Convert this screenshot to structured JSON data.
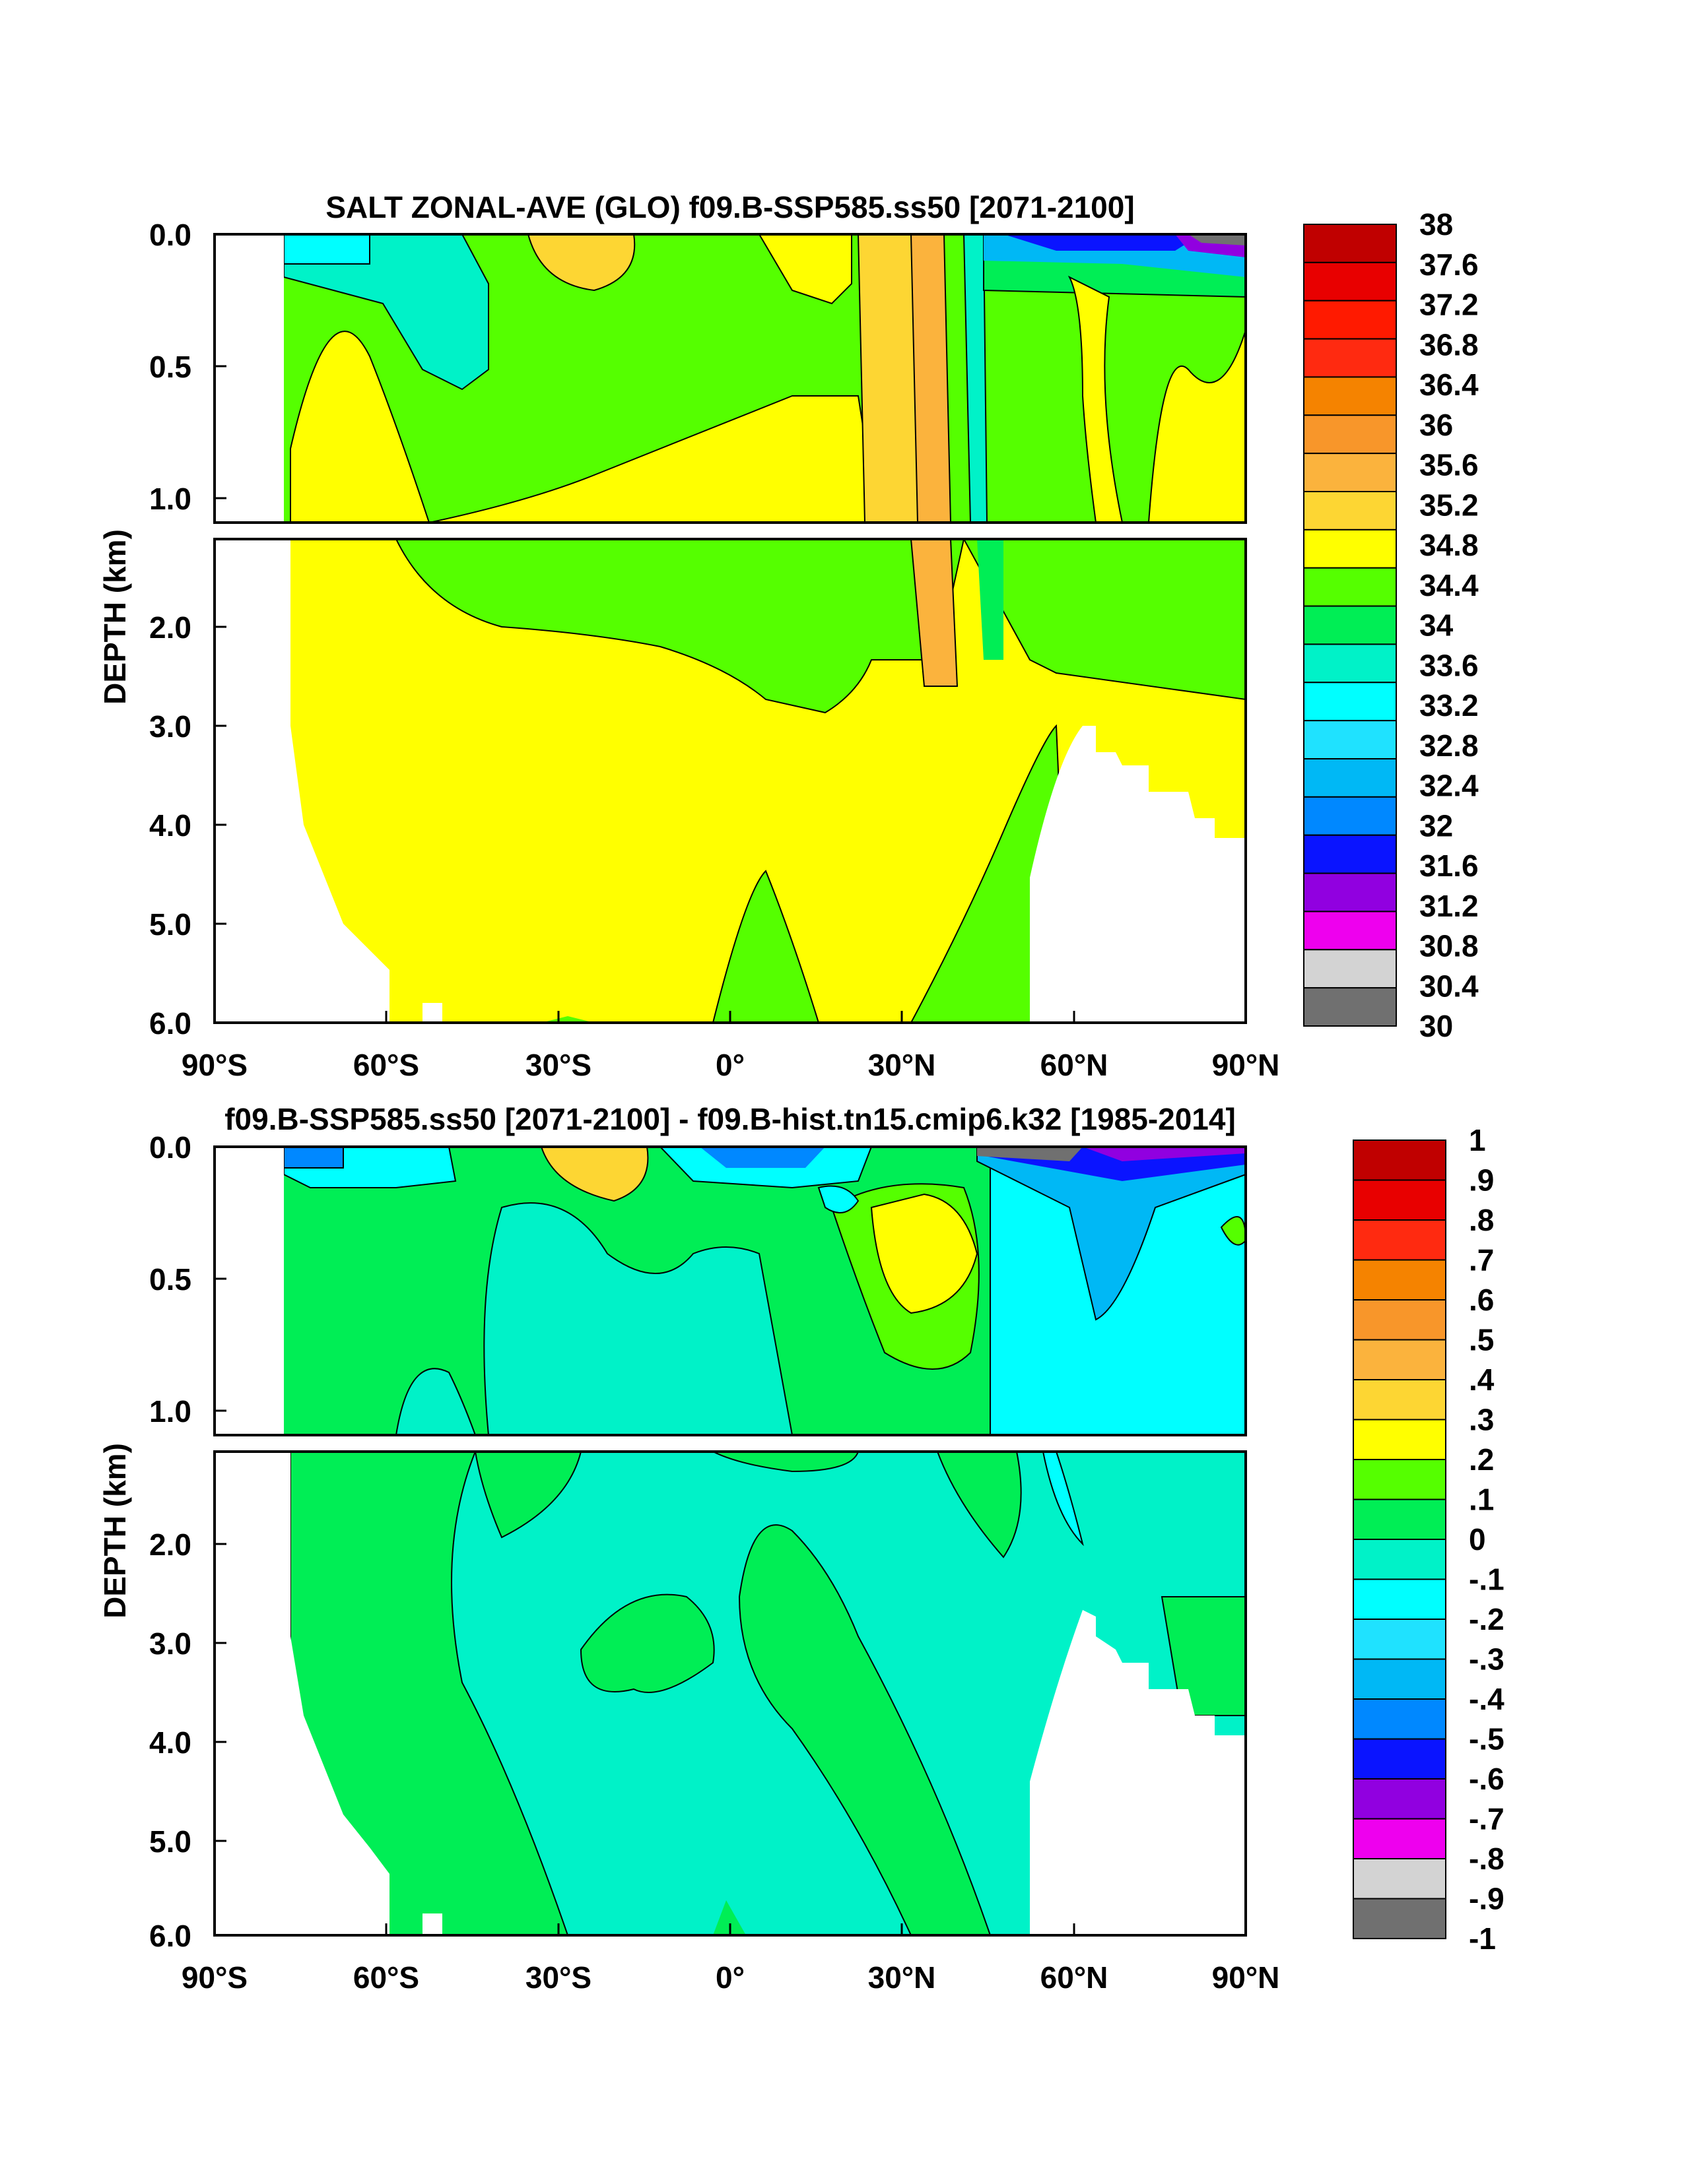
{
  "chart_data": [
    {
      "type": "filled-contour",
      "title": "SALT ZONAL-AVE (GLO) f09.B-SSP585.ss50 [2071-2100]",
      "ylabel": "DEPTH (km)",
      "x_ticks": [
        "90°S",
        "60°S",
        "30°S",
        "0°",
        "30°N",
        "60°N",
        "90°N"
      ],
      "y_ticks_upper": [
        "0.0",
        "0.5",
        "1.0"
      ],
      "y_ticks_lower": [
        "2.0",
        "3.0",
        "4.0",
        "5.0",
        "6.0"
      ],
      "xlim": [
        -90,
        90
      ],
      "ylim": [
        6.0,
        0.0
      ],
      "depth_break_km": 1.1,
      "colorbar": {
        "labels": [
          "38",
          "37.6",
          "37.2",
          "36.8",
          "36.4",
          "36",
          "35.6",
          "35.2",
          "34.8",
          "34.4",
          "34",
          "33.6",
          "33.2",
          "32.8",
          "32.4",
          "32",
          "31.6",
          "31.2",
          "30.8",
          "30.4",
          "30"
        ],
        "colors": [
          "#c00000",
          "#e80000",
          "#ff1a00",
          "#ff2a10",
          "#f58300",
          "#f8962a",
          "#fbb33d",
          "#fdd633",
          "#ffff00",
          "#55ff00",
          "#00ee55",
          "#00f2c8",
          "#00ffff",
          "#1fe2ff",
          "#00b8f5",
          "#0088ff",
          "#0a14ff",
          "#9100e0",
          "#ee00ee",
          "#d3d3d3",
          "#707070"
        ]
      }
    },
    {
      "type": "filled-contour",
      "title": "f09.B-SSP585.ss50 [2071-2100] - f09.B-hist.tn15.cmip6.k32 [1985-2014]",
      "ylabel": "DEPTH (km)",
      "x_ticks": [
        "90°S",
        "60°S",
        "30°S",
        "0°",
        "30°N",
        "60°N",
        "90°N"
      ],
      "y_ticks_upper": [
        "0.0",
        "0.5",
        "1.0"
      ],
      "y_ticks_lower": [
        "2.0",
        "3.0",
        "4.0",
        "5.0",
        "6.0"
      ],
      "xlim": [
        -90,
        90
      ],
      "ylim": [
        6.0,
        0.0
      ],
      "depth_break_km": 1.1,
      "colorbar": {
        "labels": [
          "1",
          ".9",
          ".8",
          ".7",
          ".6",
          ".5",
          ".4",
          ".3",
          ".2",
          ".1",
          "0",
          "-.1",
          "-.2",
          "-.3",
          "-.4",
          "-.5",
          "-.6",
          "-.7",
          "-.8",
          "-.9",
          "-1"
        ],
        "colors": [
          "#c00000",
          "#e80000",
          "#ff2a10",
          "#f58300",
          "#f8962a",
          "#fbb33d",
          "#fdd633",
          "#ffff00",
          "#55ff00",
          "#00ee55",
          "#00f2c8",
          "#00ffff",
          "#1fe2ff",
          "#00b8f5",
          "#0088ff",
          "#0a14ff",
          "#9100e0",
          "#ee00ee",
          "#d3d3d3",
          "#707070"
        ]
      }
    }
  ]
}
